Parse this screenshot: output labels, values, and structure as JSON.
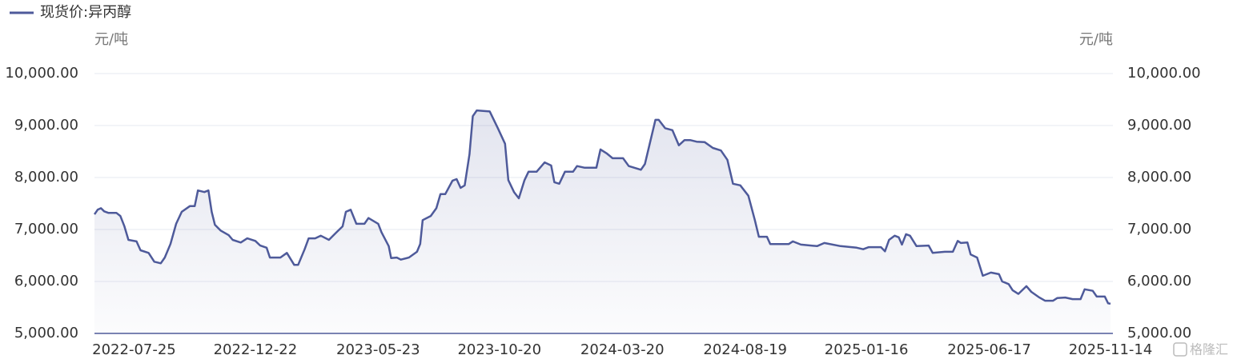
{
  "chart_data": {
    "type": "line",
    "series": [
      {
        "name": "现货价:异丙醇",
        "color": "#4e5a9a",
        "values": [
          7290,
          7380,
          7410,
          7350,
          7320,
          7320,
          7260,
          7060,
          6800,
          6770,
          6600,
          6550,
          6380,
          6350,
          6460,
          6720,
          7110,
          7340,
          7450,
          7450,
          7750,
          7720,
          7750,
          7340,
          7090,
          6980,
          6890,
          6800,
          6750,
          6830,
          6780,
          6690,
          6650,
          6460,
          6460,
          6550,
          6320,
          6320,
          6620,
          6830,
          6830,
          6880,
          6800,
          6940,
          7060,
          7340,
          7380,
          7110,
          7110,
          7220,
          7110,
          6950,
          6680,
          6450,
          6460,
          6420,
          6460,
          6570,
          6720,
          7180,
          7260,
          7410,
          7680,
          7680,
          7940,
          7970,
          7800,
          7850,
          8450,
          9180,
          9290,
          9270,
          8950,
          8650,
          7950,
          7720,
          7600,
          7950,
          8110,
          8110,
          8290,
          8230,
          7910,
          7880,
          8110,
          8110,
          8220,
          8190,
          8190,
          8540,
          8460,
          8370,
          8370,
          8220,
          8150,
          8260,
          8720,
          9110,
          9110,
          8950,
          8910,
          8620,
          8720,
          8720,
          8690,
          8680,
          8570,
          8520,
          8340,
          7880,
          7850,
          7650,
          7180,
          6860,
          6860,
          6720,
          6720,
          6770,
          6710,
          6680,
          6740,
          6680,
          6650,
          6620,
          6660,
          6660,
          6580,
          6800,
          6880,
          6850,
          6710,
          6910,
          6880,
          6680,
          6690,
          6550,
          6570,
          6570,
          6780,
          6740,
          6750,
          6520,
          6460,
          6110,
          6170,
          6140,
          6000,
          5950,
          5830,
          5760,
          5910,
          5800,
          5690,
          5630,
          5630,
          5680,
          5690,
          5660,
          5660,
          5850,
          5820,
          5710,
          5710,
          5580,
          5570
        ]
      }
    ],
    "x": [
      "2022-06-06",
      "2022-06-10",
      "2022-06-14",
      "2022-06-18",
      "2022-06-23",
      "2022-07-03",
      "2022-07-08",
      "2022-07-13",
      "2022-07-18",
      "2022-07-28",
      "2022-08-02",
      "2022-08-12",
      "2022-08-19",
      "2022-08-27",
      "2022-09-01",
      "2022-09-08",
      "2022-09-15",
      "2022-09-22",
      "2022-10-02",
      "2022-10-08",
      "2022-10-12",
      "2022-10-20",
      "2022-10-25",
      "2022-10-29",
      "2022-11-02",
      "2022-11-09",
      "2022-11-19",
      "2022-11-24",
      "2022-12-04",
      "2022-12-12",
      "2022-12-22",
      "2022-12-28",
      "2023-01-05",
      "2023-01-09",
      "2023-01-22",
      "2023-01-30",
      "2023-02-08",
      "2023-02-13",
      "2023-02-21",
      "2023-02-26",
      "2023-03-06",
      "2023-03-13",
      "2023-03-23",
      "2023-04-01",
      "2023-04-09",
      "2023-04-13",
      "2023-04-19",
      "2023-04-26",
      "2023-05-06",
      "2023-05-11",
      "2023-05-23",
      "2023-05-27",
      "2023-06-05",
      "2023-06-08",
      "2023-06-15",
      "2023-06-20",
      "2023-06-30",
      "2023-07-10",
      "2023-07-14",
      "2023-07-17",
      "2023-07-27",
      "2023-08-03",
      "2023-08-08",
      "2023-08-14",
      "2023-08-23",
      "2023-08-28",
      "2023-09-02",
      "2023-09-07",
      "2023-09-13",
      "2023-09-17",
      "2023-09-22",
      "2023-10-08",
      "2023-10-18",
      "2023-10-27",
      "2023-10-31",
      "2023-11-07",
      "2023-11-13",
      "2023-11-20",
      "2023-11-25",
      "2023-12-05",
      "2023-12-15",
      "2023-12-23",
      "2023-12-27",
      "2024-01-02",
      "2024-01-09",
      "2024-01-19",
      "2024-01-24",
      "2024-02-02",
      "2024-02-17",
      "2024-02-22",
      "2024-03-01",
      "2024-03-08",
      "2024-03-21",
      "2024-03-28",
      "2024-04-12",
      "2024-04-17",
      "2024-04-24",
      "2024-04-30",
      "2024-05-04",
      "2024-05-12",
      "2024-05-21",
      "2024-05-29",
      "2024-06-05",
      "2024-06-12",
      "2024-06-20",
      "2024-06-30",
      "2024-07-10",
      "2024-07-20",
      "2024-07-28",
      "2024-08-04",
      "2024-08-13",
      "2024-08-23",
      "2024-08-31",
      "2024-09-05",
      "2024-09-15",
      "2024-09-19",
      "2024-10-12",
      "2024-10-17",
      "2024-10-27",
      "2024-11-16",
      "2024-11-25",
      "2024-12-15",
      "2025-01-04",
      "2025-01-12",
      "2025-01-19",
      "2025-02-03",
      "2025-02-08",
      "2025-02-13",
      "2025-02-20",
      "2025-02-25",
      "2025-03-01",
      "2025-03-06",
      "2025-03-11",
      "2025-03-19",
      "2025-04-03",
      "2025-04-08",
      "2025-04-23",
      "2025-05-03",
      "2025-05-09",
      "2025-05-13",
      "2025-05-21",
      "2025-05-25",
      "2025-06-02",
      "2025-06-09",
      "2025-06-19",
      "2025-06-29",
      "2025-07-03",
      "2025-07-11",
      "2025-07-16",
      "2025-07-23",
      "2025-08-02",
      "2025-08-08",
      "2025-08-18",
      "2025-08-25",
      "2025-09-04",
      "2025-09-09",
      "2025-09-19",
      "2025-09-28",
      "2025-10-08",
      "2025-10-13",
      "2025-10-23",
      "2025-10-28",
      "2025-11-07",
      "2025-11-11",
      "2025-11-14"
    ],
    "xlim": [
      "2022-06-06",
      "2025-11-14"
    ],
    "xticks": [
      "2022-07-25",
      "2022-12-22",
      "2023-05-23",
      "2023-10-20",
      "2024-03-20",
      "2024-08-19",
      "2025-01-16",
      "2025-06-17",
      "2025-11-14"
    ],
    "y_label": "元/吨",
    "y2_label": "元/吨",
    "ylim": [
      5000,
      10000
    ],
    "yticks": [
      {
        "value": 5000,
        "label": "5,000.00"
      },
      {
        "value": 6000,
        "label": "6,000.00"
      },
      {
        "value": 7000,
        "label": "7,000.00"
      },
      {
        "value": 8000,
        "label": "8,000.00"
      },
      {
        "value": 9000,
        "label": "9,000.00"
      },
      {
        "value": 10000,
        "label": "10,000.00"
      }
    ],
    "y2lim": [
      5000,
      10000
    ],
    "y2ticks": [
      {
        "value": 5000,
        "label": "5,000.00"
      },
      {
        "value": 6000,
        "label": "6,000.00"
      },
      {
        "value": 7000,
        "label": "7,000.00"
      },
      {
        "value": 8000,
        "label": "8,000.00"
      },
      {
        "value": 9000,
        "label": "9,000.00"
      },
      {
        "value": 10000,
        "label": "10,000.00"
      }
    ],
    "grid": true,
    "legend": "top-left",
    "watermark": "格隆汇"
  }
}
